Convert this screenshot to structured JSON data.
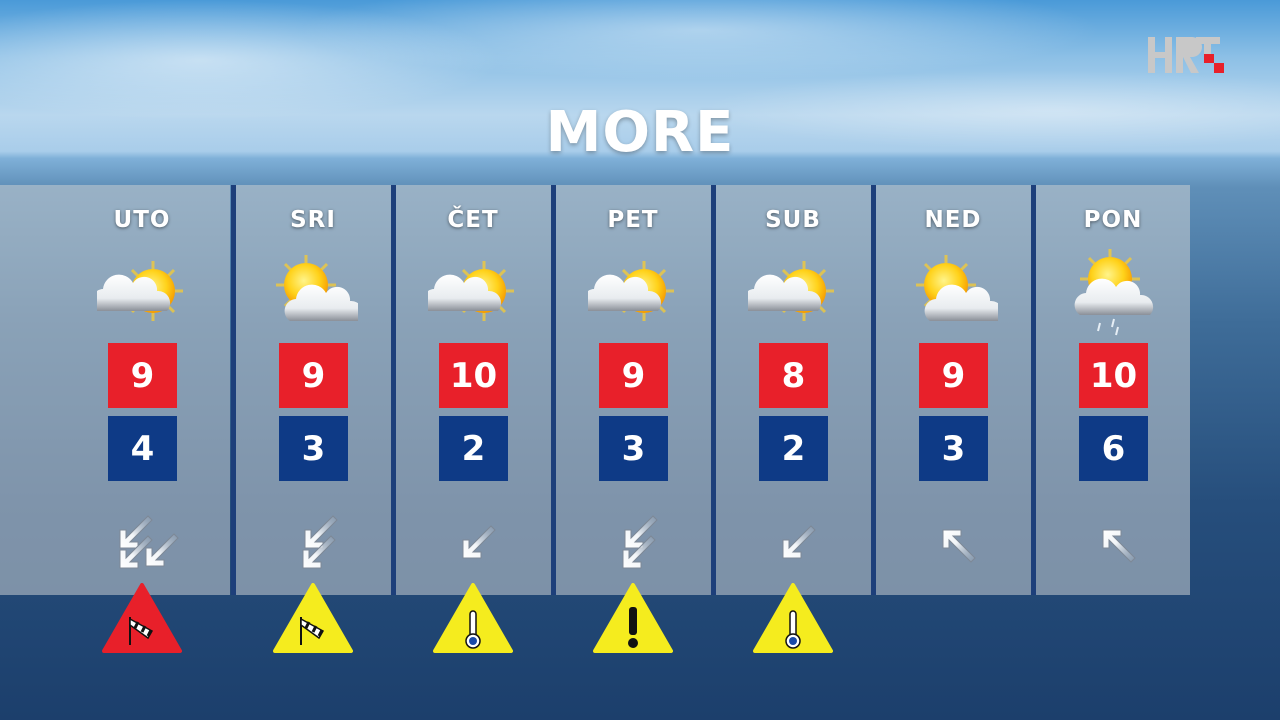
{
  "title": "MORE",
  "logo": {
    "text": "HRT",
    "accent": "#e8202a"
  },
  "colors": {
    "max": "#e8202a",
    "min": "#0e3a86",
    "warn_red": "#e8202a",
    "warn_yellow": "#f5ec1e"
  },
  "days": [
    {
      "label": "UTO",
      "icon": "cloud-sun",
      "max": "9",
      "min": "4",
      "wind": {
        "direction": "northeast",
        "arrows": 3
      },
      "warning": {
        "level": "red",
        "type": "wind"
      }
    },
    {
      "label": "SRI",
      "icon": "sun-cloud",
      "max": "9",
      "min": "3",
      "wind": {
        "direction": "northeast",
        "arrows": 2
      },
      "warning": {
        "level": "yellow",
        "type": "wind"
      }
    },
    {
      "label": "ČET",
      "icon": "cloud-sun",
      "max": "10",
      "min": "2",
      "wind": {
        "direction": "northeast",
        "arrows": 1
      },
      "warning": {
        "level": "yellow",
        "type": "temperature"
      }
    },
    {
      "label": "PET",
      "icon": "cloud-sun",
      "max": "9",
      "min": "3",
      "wind": {
        "direction": "northeast",
        "arrows": 2
      },
      "warning": {
        "level": "yellow",
        "type": "general"
      }
    },
    {
      "label": "SUB",
      "icon": "cloud-sun",
      "max": "8",
      "min": "2",
      "wind": {
        "direction": "northeast",
        "arrows": 1
      },
      "warning": {
        "level": "yellow",
        "type": "temperature"
      }
    },
    {
      "label": "NED",
      "icon": "sun-cloud",
      "max": "9",
      "min": "3",
      "wind": {
        "direction": "southeast",
        "arrows": 1
      },
      "warning": null
    },
    {
      "label": "PON",
      "icon": "sun-cloud-rain",
      "max": "10",
      "min": "6",
      "wind": {
        "direction": "southeast",
        "arrows": 1
      },
      "warning": null
    }
  ]
}
